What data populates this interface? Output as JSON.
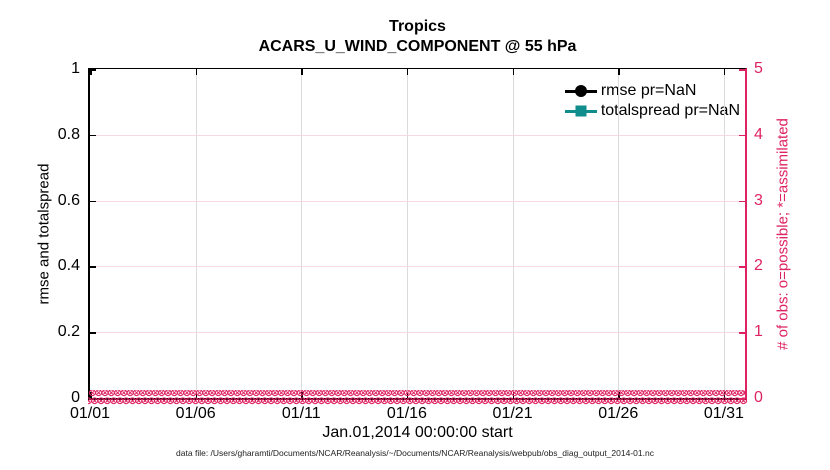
{
  "title": {
    "line1": "Tropics",
    "line2": "ACARS_U_WIND_COMPONENT @ 55 hPa"
  },
  "chart_data": {
    "type": "line",
    "title": "Tropics",
    "subtitle": "ACARS_U_WIND_COMPONENT @ 55 hPa",
    "xlabel": "Jan.01,2014 00:00:00 start",
    "ylabel_left": "rmse and totalspread",
    "ylabel_right": "# of obs: o=possible; *=assimilated",
    "x_tick_labels": [
      "01/01",
      "01/06",
      "01/11",
      "01/16",
      "01/21",
      "01/26",
      "01/31"
    ],
    "x_tick_days": [
      0,
      5,
      10,
      15,
      20,
      25,
      30
    ],
    "x_span_days": 31,
    "ylim_left": [
      0,
      1
    ],
    "y_ticks_left": [
      "0",
      "0.2",
      "0.4",
      "0.6",
      "0.8",
      "1"
    ],
    "y_tick_values_left": [
      0,
      0.2,
      0.4,
      0.6,
      0.8,
      1
    ],
    "ylim_right": [
      0,
      5
    ],
    "y_ticks_right": [
      "0",
      "1",
      "2",
      "3",
      "4",
      "5"
    ],
    "y_tick_values_right": [
      0,
      1,
      2,
      3,
      4,
      5
    ],
    "grid": true,
    "legend_position": "top-right-inside",
    "series": [
      {
        "name": "rmse pr=NaN",
        "axis": "left",
        "color": "#000000",
        "marker": "circle",
        "values": "NaN (no line drawn)"
      },
      {
        "name": "totalspread pr=NaN",
        "axis": "left",
        "color": "#108d8d",
        "marker": "square",
        "values": "NaN (no line drawn)"
      },
      {
        "name": "# of obs possible (o markers)",
        "axis": "right",
        "color": "#de2362",
        "marker": "o",
        "constant_value": 0
      },
      {
        "name": "# of obs assimilated (* markers)",
        "axis": "right",
        "color": "#de2362",
        "marker": "*",
        "constant_value": 0
      }
    ],
    "obs_band": {
      "glyph": "⊗",
      "glyphs_per_row": 112,
      "rows": 2
    }
  },
  "legend": {
    "items": [
      {
        "label": "rmse pr=NaN",
        "color": "#000000",
        "marker": "circle"
      },
      {
        "label": "totalspread pr=NaN",
        "color": "#108d8d",
        "marker": "square"
      }
    ]
  },
  "labels": {
    "xlabel": "Jan.01,2014 00:00:00 start",
    "ylabel_left": "rmse and totalspread",
    "ylabel_right": "# of obs: o=possible; *=assimilated"
  },
  "footer": "data file: /Users/gharamti/Documents/NCAR/Reanalysis/~/Documents/NCAR/Reanalysis/webpub/obs_diag_output_2014-01.nc",
  "colors": {
    "right_axis": "#de2362",
    "grid_vertical": "#dbdbdb",
    "grid_horizontal": "#f7d9e5",
    "rmse": "#000000",
    "totalspread": "#108d8d"
  }
}
